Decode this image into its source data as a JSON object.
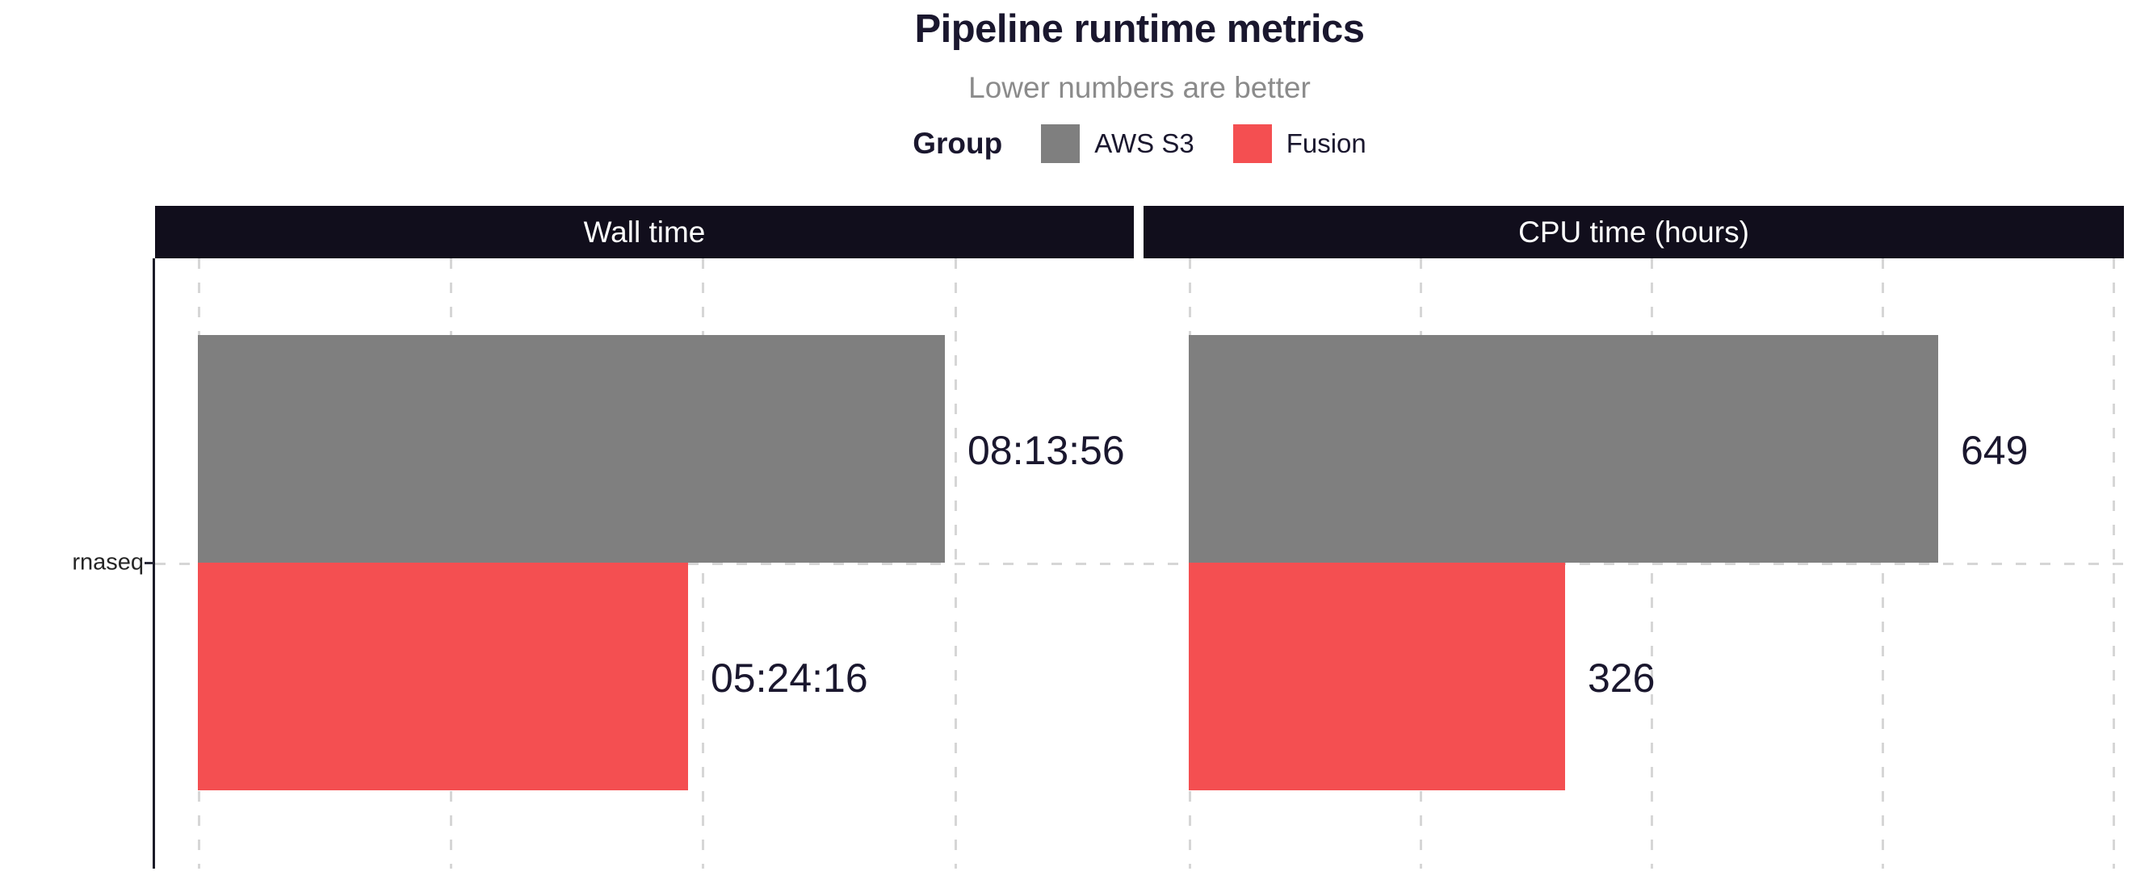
{
  "header": {
    "title": "Pipeline runtime metrics",
    "subtitle": "Lower numbers are better"
  },
  "legend": {
    "title": "Group",
    "items": [
      {
        "label": "AWS S3",
        "color": "#7f7f7f"
      },
      {
        "label": "Fusion",
        "color": "#f44f51"
      }
    ]
  },
  "y_axis": {
    "category": "rnaseq"
  },
  "colors": {
    "bar_gray": "#7f7f7f",
    "bar_red": "#f44f51",
    "strip_background": "#110e1c",
    "strip_text": "#ffffff",
    "ink": "#1a172e",
    "subtitle_gray": "#8b8b8b",
    "gridline": "#d6d6d6"
  },
  "chart_data": {
    "type": "bar",
    "orientation": "horizontal",
    "title": "Pipeline runtime metrics",
    "subtitle": "Lower numbers are better",
    "legend_title": "Group",
    "legend_position": "top",
    "grid": "dashed-vertical-and-category",
    "categories": [
      "rnaseq"
    ],
    "series": [
      {
        "name": "AWS S3",
        "color": "#7f7f7f"
      },
      {
        "name": "Fusion",
        "color": "#f44f51"
      }
    ],
    "panels": [
      {
        "label": "Wall time",
        "unit": "seconds",
        "axis": {
          "min": -1693,
          "max": 37124,
          "gridlines": [
            0,
            10000,
            20000,
            30000
          ]
        },
        "bars": [
          {
            "series": "AWS S3",
            "value": 29636,
            "display_label": "08:13:56"
          },
          {
            "series": "Fusion",
            "value": 19456,
            "display_label": "05:24:16"
          }
        ]
      },
      {
        "label": "CPU time (hours)",
        "unit": "hours",
        "axis": {
          "min": -39,
          "max": 810,
          "gridlines": [
            0,
            200,
            400,
            600,
            800
          ]
        },
        "bars": [
          {
            "series": "AWS S3",
            "value": 649,
            "display_label": "649"
          },
          {
            "series": "Fusion",
            "value": 326,
            "display_label": "326"
          }
        ]
      }
    ]
  }
}
